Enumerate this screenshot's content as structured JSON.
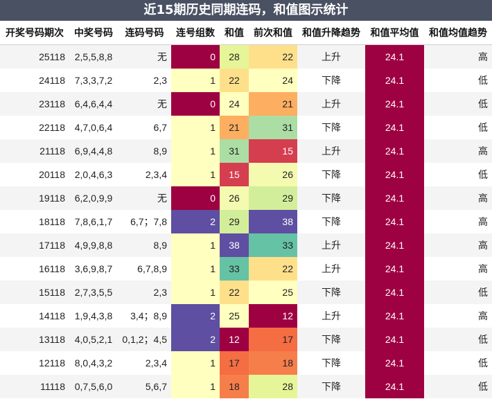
{
  "title": "近15期历史同期连码，和值图示统计",
  "headers": [
    "开奖号码期次",
    "中奖号码",
    "连码号码",
    "连号组数",
    "和值",
    "前次和值",
    "和值升降趋势",
    "和值平均值",
    "和值均值趋势"
  ],
  "rows": [
    {
      "period": "25118",
      "numbers": "2,5,5,8,8",
      "consecutive": "无",
      "groups": "0",
      "sum": "28",
      "prev_sum": "22",
      "trend": "上升",
      "avg": "24.1",
      "avg_trend": "高"
    },
    {
      "period": "24118",
      "numbers": "7,3,3,7,2",
      "consecutive": "2,3",
      "groups": "1",
      "sum": "22",
      "prev_sum": "24",
      "trend": "下降",
      "avg": "24.1",
      "avg_trend": "低"
    },
    {
      "period": "23118",
      "numbers": "6,4,6,4,4",
      "consecutive": "无",
      "groups": "0",
      "sum": "24",
      "prev_sum": "21",
      "trend": "上升",
      "avg": "24.1",
      "avg_trend": "低"
    },
    {
      "period": "22118",
      "numbers": "4,7,0,6,4",
      "consecutive": "6,7",
      "groups": "1",
      "sum": "21",
      "prev_sum": "31",
      "trend": "下降",
      "avg": "24.1",
      "avg_trend": "低"
    },
    {
      "period": "21118",
      "numbers": "6,9,4,4,8",
      "consecutive": "8,9",
      "groups": "1",
      "sum": "31",
      "prev_sum": "15",
      "trend": "上升",
      "avg": "24.1",
      "avg_trend": "高"
    },
    {
      "period": "20118",
      "numbers": "2,0,4,6,3",
      "consecutive": "2,3,4",
      "groups": "1",
      "sum": "15",
      "prev_sum": "26",
      "trend": "下降",
      "avg": "24.1",
      "avg_trend": "低"
    },
    {
      "period": "19118",
      "numbers": "6,2,0,9,9",
      "consecutive": "无",
      "groups": "0",
      "sum": "26",
      "prev_sum": "29",
      "trend": "下降",
      "avg": "24.1",
      "avg_trend": "高"
    },
    {
      "period": "18118",
      "numbers": "7,8,6,1,7",
      "consecutive": "6,7；7,8",
      "groups": "2",
      "sum": "29",
      "prev_sum": "38",
      "trend": "下降",
      "avg": "24.1",
      "avg_trend": "高"
    },
    {
      "period": "17118",
      "numbers": "4,9,9,8,8",
      "consecutive": "8,9",
      "groups": "1",
      "sum": "38",
      "prev_sum": "33",
      "trend": "上升",
      "avg": "24.1",
      "avg_trend": "高"
    },
    {
      "period": "16118",
      "numbers": "3,6,9,8,7",
      "consecutive": "6,7,8,9",
      "groups": "1",
      "sum": "33",
      "prev_sum": "22",
      "trend": "上升",
      "avg": "24.1",
      "avg_trend": "高"
    },
    {
      "period": "15118",
      "numbers": "2,7,3,5,5",
      "consecutive": "2,3",
      "groups": "1",
      "sum": "22",
      "prev_sum": "25",
      "trend": "下降",
      "avg": "24.1",
      "avg_trend": "低"
    },
    {
      "period": "14118",
      "numbers": "1,9,4,3,8",
      "consecutive": "3,4；8,9",
      "groups": "2",
      "sum": "25",
      "prev_sum": "12",
      "trend": "上升",
      "avg": "24.1",
      "avg_trend": "高"
    },
    {
      "period": "13118",
      "numbers": "4,0,5,2,1",
      "consecutive": "0,1,2；4,5",
      "groups": "2",
      "sum": "12",
      "prev_sum": "17",
      "trend": "下降",
      "avg": "24.1",
      "avg_trend": "低"
    },
    {
      "period": "12118",
      "numbers": "8,0,4,3,2",
      "consecutive": "2,3,4",
      "groups": "1",
      "sum": "17",
      "prev_sum": "18",
      "trend": "下降",
      "avg": "24.1",
      "avg_trend": "低"
    },
    {
      "period": "11118",
      "numbers": "0,7,5,6,0",
      "consecutive": "5,6,7",
      "groups": "1",
      "sum": "18",
      "prev_sum": "28",
      "trend": "下降",
      "avg": "24.1",
      "avg_trend": "低"
    }
  ],
  "colors": {
    "title_bg": "#4a5163",
    "avg_bg": "#9e0142",
    "groups": {
      "0": "#9e0142",
      "1": "#ffffbf",
      "2": "#5e4fa2"
    },
    "sum_scale": {
      "12": "#9e0142",
      "15": "#d53e4f",
      "17": "#f46d43",
      "18": "#f67e4b",
      "21": "#fdae61",
      "22": "#fee08b",
      "24": "#ffffbf",
      "25": "#ffffbf",
      "26": "#f4fab0",
      "28": "#e6f598",
      "29": "#d3ee9b",
      "31": "#abdda4",
      "33": "#66c2a5",
      "38": "#5e4fa2"
    }
  }
}
